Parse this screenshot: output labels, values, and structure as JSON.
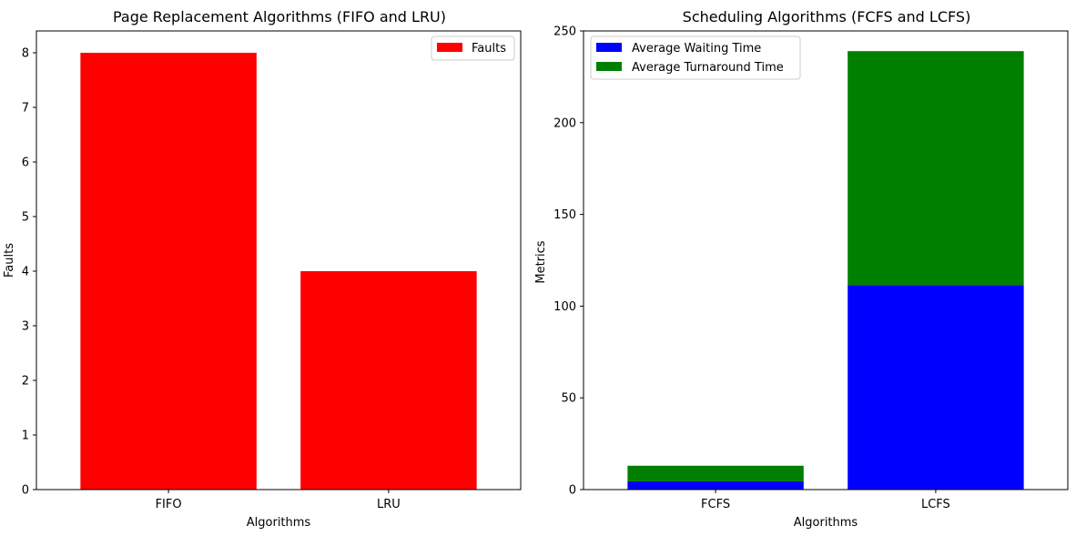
{
  "chart_data": [
    {
      "type": "bar",
      "title": "Page Replacement Algorithms (FIFO and LRU)",
      "xlabel": "Algorithms",
      "ylabel": "Faults",
      "categories": [
        "FIFO",
        "LRU"
      ],
      "series": [
        {
          "name": "Faults",
          "values": [
            8,
            4
          ],
          "color": "#ff0000"
        }
      ],
      "ylim": [
        0,
        8.4
      ],
      "yticks": [
        0,
        1,
        2,
        3,
        4,
        5,
        6,
        7,
        8
      ],
      "legend": "top-right",
      "grid": false
    },
    {
      "type": "bar",
      "stacked": true,
      "title": "Scheduling Algorithms (FCFS and LCFS)",
      "xlabel": "Algorithms",
      "ylabel": "Metrics",
      "categories": [
        "FCFS",
        "LCFS"
      ],
      "series": [
        {
          "name": "Average Waiting Time",
          "values": [
            4.5,
            111.5
          ],
          "color": "#0000ff"
        },
        {
          "name": "Average Turnaround Time",
          "values": [
            8.5,
            127.5
          ],
          "color": "#008000"
        }
      ],
      "ylim": [
        0,
        250
      ],
      "yticks": [
        0,
        50,
        100,
        150,
        200,
        250
      ],
      "legend": "top-left",
      "grid": false
    }
  ]
}
